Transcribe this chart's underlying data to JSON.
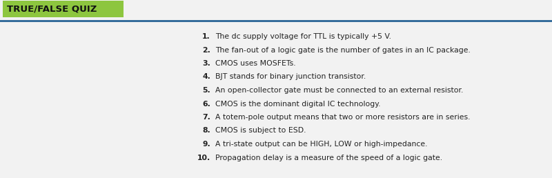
{
  "title": "TRUE/FALSE QUIZ",
  "title_bg_color": "#8dc63f",
  "title_text_color": "#111111",
  "title_font_size": 9.5,
  "separator_color": "#2a6496",
  "background_color": "#e8e8e8",
  "content_bg_color": "#f5f5f5",
  "lines": [
    {
      "num": "1.",
      "text": "The dc supply voltage for TTL is typically +5 V."
    },
    {
      "num": "2.",
      "text": "The fan-out of a logic gate is the number of gates in an IC package."
    },
    {
      "num": "3.",
      "text": "CMOS uses MOSFETs."
    },
    {
      "num": "4.",
      "text": "BJT stands for binary junction transistor."
    },
    {
      "num": "5.",
      "text": "An open-collector gate must be connected to an external resistor."
    },
    {
      "num": "6.",
      "text": "CMOS is the dominant digital IC technology."
    },
    {
      "num": "7.",
      "text": "A totem-pole output means that two or more resistors are in series."
    },
    {
      "num": "8.",
      "text": "CMOS is subject to ESD."
    },
    {
      "num": "9.",
      "text": "A tri-state output can be HIGH, LOW or high-impedance."
    },
    {
      "num": "10.",
      "text": "Propagation delay is a measure of the speed of a logic gate."
    }
  ],
  "text_color": "#222222",
  "font_size": 7.8,
  "fig_width": 8.0,
  "fig_height": 2.58,
  "dpi": 100
}
